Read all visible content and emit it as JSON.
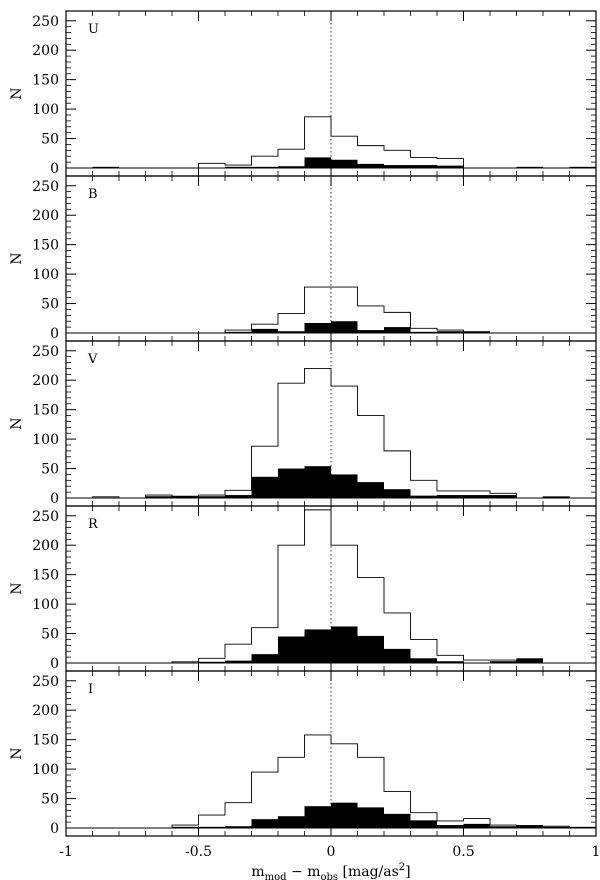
{
  "chart_data": {
    "type": "bar",
    "xlabel": "m_mod − m_obs [mag/as²]",
    "xlabel_parts": {
      "m1": "m",
      "sub1": "mod",
      "minus": " − m",
      "sub2": "obs",
      "unit_open": " [mag/as",
      "sup": "2",
      "unit_close": "]"
    },
    "ylabel": "N",
    "xlim": [
      -1,
      1
    ],
    "ylim": [
      0,
      260
    ],
    "x_ticks": [
      "-1",
      "-0.5",
      "0",
      "0.5",
      "1"
    ],
    "x_tick_values": [
      -1,
      -0.5,
      0,
      0.5,
      1
    ],
    "y_ticks": [
      "0",
      "50",
      "100",
      "150",
      "200",
      "250"
    ],
    "y_tick_values": [
      0,
      50,
      100,
      150,
      200,
      250
    ],
    "reference_line": 0,
    "bin_edges": [
      -1.0,
      -0.9,
      -0.8,
      -0.7,
      -0.6,
      -0.5,
      -0.4,
      -0.3,
      -0.2,
      -0.1,
      0.0,
      0.1,
      0.2,
      0.3,
      0.4,
      0.5,
      0.6,
      0.7,
      0.8,
      0.9,
      1.0
    ],
    "panels": [
      {
        "label": "U",
        "open": [
          0,
          0,
          0,
          0,
          0,
          8,
          5,
          20,
          32,
          87,
          54,
          38,
          30,
          18,
          16,
          0,
          0,
          0,
          0,
          0
        ],
        "filled": [
          0,
          2,
          0,
          0,
          0,
          0,
          2,
          2,
          3,
          18,
          14,
          7,
          5,
          5,
          4,
          0,
          0,
          2,
          0,
          2
        ]
      },
      {
        "label": "B",
        "open": [
          0,
          0,
          0,
          0,
          0,
          0,
          5,
          15,
          33,
          78,
          78,
          46,
          35,
          8,
          5,
          0,
          0,
          0,
          0,
          0
        ],
        "filled": [
          0,
          0,
          0,
          0,
          0,
          0,
          2,
          7,
          3,
          17,
          20,
          5,
          10,
          2,
          3,
          3,
          0,
          0,
          0,
          0
        ]
      },
      {
        "label": "V",
        "open": [
          0,
          2,
          0,
          5,
          3,
          5,
          13,
          88,
          195,
          220,
          190,
          140,
          80,
          30,
          12,
          12,
          8,
          0,
          2,
          0
        ],
        "filled": [
          0,
          0,
          0,
          3,
          3,
          3,
          5,
          36,
          50,
          54,
          40,
          27,
          15,
          4,
          5,
          5,
          5,
          0,
          2,
          0
        ]
      },
      {
        "label": "R",
        "open": [
          0,
          0,
          0,
          0,
          2,
          8,
          32,
          60,
          200,
          260,
          200,
          145,
          85,
          40,
          13,
          5,
          5,
          0,
          0,
          0
        ],
        "filled": [
          0,
          0,
          0,
          0,
          0,
          2,
          4,
          15,
          45,
          57,
          62,
          46,
          24,
          8,
          3,
          0,
          3,
          8,
          0,
          0
        ]
      },
      {
        "label": "I",
        "open": [
          0,
          0,
          0,
          0,
          5,
          22,
          43,
          95,
          120,
          158,
          143,
          120,
          62,
          26,
          12,
          16,
          5,
          3,
          3,
          0
        ],
        "filled": [
          0,
          0,
          0,
          0,
          2,
          2,
          3,
          15,
          20,
          37,
          43,
          35,
          24,
          13,
          5,
          7,
          3,
          5,
          2,
          2
        ]
      }
    ]
  }
}
